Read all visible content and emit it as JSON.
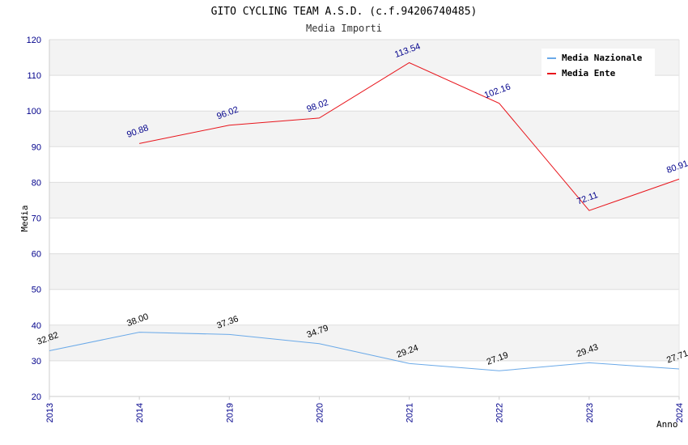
{
  "chart_data": {
    "type": "line",
    "title": "GITO CYCLING TEAM A.S.D. (c.f.94206740485)",
    "subtitle": "Media Importi",
    "xlabel": "Anno",
    "ylabel": "Media",
    "categories": [
      "2013",
      "2014",
      "2019",
      "2020",
      "2021",
      "2022",
      "2023",
      "2024"
    ],
    "ylim": [
      20,
      120
    ],
    "yticks": [
      20,
      30,
      40,
      50,
      60,
      70,
      80,
      90,
      100,
      110,
      120
    ],
    "grid": true,
    "legend_position": "top-right",
    "series": [
      {
        "name": "Media Nazionale",
        "color": "#6aa9e8",
        "label_color": "#000000",
        "values": [
          32.82,
          38.0,
          37.36,
          34.79,
          29.24,
          27.19,
          29.43,
          27.71
        ],
        "labels": [
          "32.82",
          "38.00",
          "37.36",
          "34.79",
          "29.24",
          "27.19",
          "29.43",
          "27.71"
        ]
      },
      {
        "name": "Media Ente",
        "color": "#e8141b",
        "label_color": "#00008b",
        "values": [
          null,
          90.88,
          96.02,
          98.02,
          113.54,
          102.16,
          72.11,
          80.91
        ],
        "labels": [
          "",
          "90.88",
          "96.02",
          "98.02",
          "113.54",
          "102.16",
          "72.11",
          "80.91"
        ]
      }
    ]
  }
}
